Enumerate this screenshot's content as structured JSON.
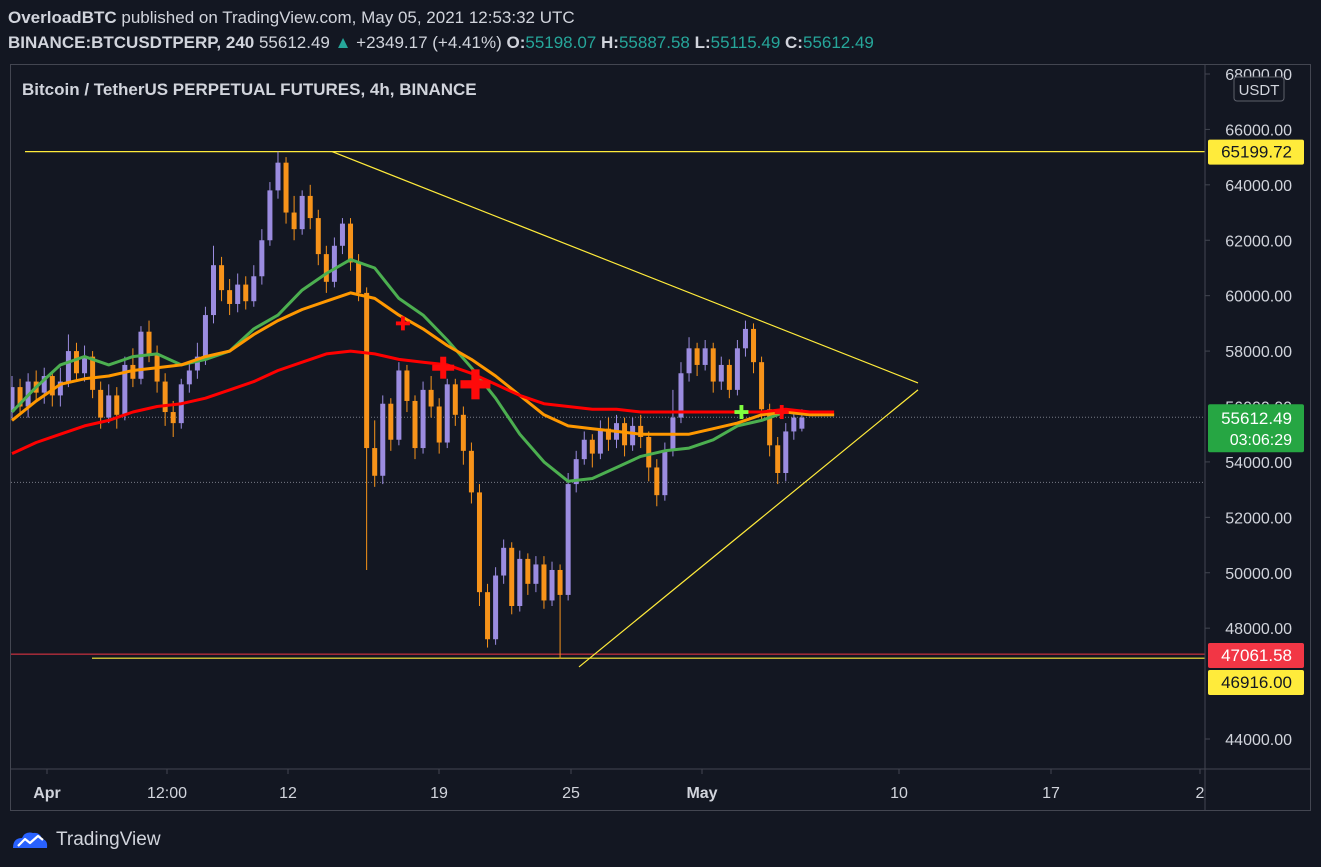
{
  "header": {
    "author": "OverloadBTC",
    "published": "published on TradingView.com, May 05, 2021 12:53:32 UTC",
    "symbol": "BINANCE:BTCUSDTPERP, 240",
    "last": "55612.49",
    "change": "+2349.17 (+4.41%)",
    "o_label": "O:",
    "o": "55198.07",
    "h_label": "H:",
    "h": "55887.58",
    "l_label": "L:",
    "l": "55115.49",
    "c_label": "C:",
    "c": "55612.49"
  },
  "legend": "Bitcoin / TetherUS PERPETUAL FUTURES, 4h, BINANCE",
  "brand": "TradingView",
  "colors": {
    "background": "#131722",
    "grid_border": "#434651",
    "text": "#d1d4dc",
    "candle_up": "#9b8ce0",
    "candle_down": "#f7931a",
    "ma_fast": "#4caf50",
    "ma_mid": "#ff9800",
    "ma_slow": "#ff0000",
    "trendline": "#ffeb3b",
    "support_line": "#f23645",
    "tag_yellow": "#ffeb3b",
    "tag_red": "#f23645",
    "tag_green": "#26a643",
    "tag_white": "#131722"
  },
  "chart_data": {
    "type": "candlestick",
    "currency": "USDT",
    "y_ticks": [
      "68000.00",
      "66000.00",
      "64000.00",
      "62000.00",
      "60000.00",
      "58000.00",
      "54000.00",
      "52000.00",
      "50000.00",
      "48000.00",
      "44000.00"
    ],
    "ylim": [
      42800,
      68300
    ],
    "x_ticks": [
      "Apr",
      "12:00",
      "12",
      "19",
      "25",
      "May",
      "10",
      "17",
      "2"
    ],
    "price_tags": [
      {
        "value": 65199.72,
        "text": "65199.72",
        "style": "yellow"
      },
      {
        "value": 55612.49,
        "text": "55612.49",
        "sub": "03:06:29",
        "style": "green"
      },
      {
        "value": 47061.58,
        "text": "47061.58",
        "style": "red"
      },
      {
        "value": 46916.0,
        "text": "46916.00",
        "style": "yellow"
      }
    ],
    "horizontal_lines": [
      {
        "y": 65199.72,
        "style": "yellow",
        "x_from": "Apr"
      },
      {
        "y": 46916.0,
        "style": "yellow",
        "x_from": "Apr 6"
      },
      {
        "y": 47061.58,
        "style": "red",
        "x_from": "Apr"
      }
    ],
    "trendlines": [
      {
        "from": {
          "x": "Apr 14",
          "y": 65200
        },
        "to": {
          "x": "May 11",
          "y": 56850
        }
      },
      {
        "from": {
          "x": "Apr 25",
          "y": 46600
        },
        "to": {
          "x": "May 11",
          "y": 56600
        }
      }
    ],
    "series": [
      {
        "name": "",
        "kind": "ma",
        "style": "fast",
        "values": [
          [
            0,
            55800
          ],
          [
            3,
            56700
          ],
          [
            6,
            57500
          ],
          [
            9,
            57800
          ],
          [
            12,
            57500
          ],
          [
            15,
            57800
          ],
          [
            18,
            57900
          ],
          [
            21,
            57500
          ],
          [
            24,
            57700
          ],
          [
            27,
            58000
          ],
          [
            30,
            58800
          ],
          [
            33,
            59300
          ],
          [
            36,
            60200
          ],
          [
            39,
            60800
          ],
          [
            42,
            61300
          ],
          [
            45,
            61000
          ],
          [
            48,
            59900
          ],
          [
            51,
            59300
          ],
          [
            54,
            58400
          ],
          [
            57,
            57400
          ],
          [
            60,
            56300
          ],
          [
            63,
            55000
          ],
          [
            66,
            54000
          ],
          [
            69,
            53300
          ],
          [
            72,
            53400
          ],
          [
            75,
            53800
          ],
          [
            78,
            54200
          ],
          [
            81,
            54400
          ],
          [
            84,
            54500
          ],
          [
            87,
            54800
          ],
          [
            90,
            55300
          ],
          [
            93,
            55500
          ],
          [
            96,
            55800
          ],
          [
            99,
            55700
          ],
          [
            102,
            55700
          ]
        ]
      },
      {
        "name": "",
        "kind": "ma",
        "style": "mid",
        "values": [
          [
            0,
            55500
          ],
          [
            3,
            56200
          ],
          [
            6,
            56800
          ],
          [
            9,
            57000
          ],
          [
            12,
            57100
          ],
          [
            15,
            57300
          ],
          [
            18,
            57400
          ],
          [
            21,
            57500
          ],
          [
            24,
            57800
          ],
          [
            27,
            58000
          ],
          [
            30,
            58600
          ],
          [
            33,
            59100
          ],
          [
            36,
            59500
          ],
          [
            39,
            59800
          ],
          [
            42,
            60100
          ],
          [
            45,
            59900
          ],
          [
            48,
            59300
          ],
          [
            51,
            58800
          ],
          [
            54,
            58200
          ],
          [
            57,
            57700
          ],
          [
            60,
            57100
          ],
          [
            63,
            56400
          ],
          [
            66,
            55700
          ],
          [
            69,
            55300
          ],
          [
            72,
            55200
          ],
          [
            75,
            55100
          ],
          [
            78,
            55000
          ],
          [
            81,
            55000
          ],
          [
            84,
            55000
          ],
          [
            87,
            55200
          ],
          [
            90,
            55400
          ],
          [
            93,
            55700
          ],
          [
            96,
            55800
          ],
          [
            99,
            55700
          ],
          [
            102,
            55700
          ]
        ]
      },
      {
        "name": "",
        "kind": "ma",
        "style": "slow",
        "values": [
          [
            0,
            54300
          ],
          [
            3,
            54700
          ],
          [
            6,
            55000
          ],
          [
            9,
            55300
          ],
          [
            12,
            55500
          ],
          [
            15,
            55800
          ],
          [
            18,
            56000
          ],
          [
            21,
            56100
          ],
          [
            24,
            56300
          ],
          [
            27,
            56600
          ],
          [
            30,
            56900
          ],
          [
            33,
            57300
          ],
          [
            36,
            57600
          ],
          [
            39,
            57900
          ],
          [
            42,
            58000
          ],
          [
            45,
            57900
          ],
          [
            48,
            57700
          ],
          [
            51,
            57600
          ],
          [
            54,
            57500
          ],
          [
            57,
            57200
          ],
          [
            60,
            56800
          ],
          [
            63,
            56400
          ],
          [
            66,
            56100
          ],
          [
            69,
            56000
          ],
          [
            72,
            55900
          ],
          [
            75,
            55900
          ],
          [
            78,
            55800
          ],
          [
            81,
            55800
          ],
          [
            84,
            55800
          ],
          [
            87,
            55800
          ],
          [
            90,
            55800
          ],
          [
            93,
            55800
          ],
          [
            96,
            55900
          ],
          [
            99,
            55800
          ],
          [
            102,
            55800
          ]
        ]
      }
    ],
    "markers": [
      {
        "x": 48.5,
        "y": 59000,
        "color": "red",
        "size": "small"
      },
      {
        "x": 53.5,
        "y": 57400,
        "color": "red",
        "size": "medium"
      },
      {
        "x": 57.5,
        "y": 56800,
        "color": "red",
        "size": "large"
      },
      {
        "x": 90.5,
        "y": 55800,
        "color": "green",
        "size": "small"
      },
      {
        "x": 95.5,
        "y": 55800,
        "color": "red",
        "size": "small"
      }
    ],
    "candles": [
      [
        0,
        55800,
        56700,
        55500,
        57100
      ],
      [
        1,
        56700,
        56000,
        55700,
        57000
      ],
      [
        2,
        56000,
        56900,
        55600,
        57200
      ],
      [
        3,
        56900,
        56500,
        56200,
        57300
      ],
      [
        4,
        56500,
        57100,
        56100,
        57400
      ],
      [
        5,
        57100,
        56400,
        56000,
        57200
      ],
      [
        6,
        56400,
        56900,
        56000,
        57400
      ],
      [
        7,
        56900,
        58000,
        56700,
        58600
      ],
      [
        8,
        58000,
        57200,
        56900,
        58300
      ],
      [
        9,
        57200,
        57800,
        56900,
        58200
      ],
      [
        10,
        57800,
        56600,
        56300,
        58000
      ],
      [
        11,
        56600,
        55600,
        55200,
        56900
      ],
      [
        12,
        55600,
        56400,
        55400,
        56800
      ],
      [
        13,
        56400,
        55700,
        55200,
        56700
      ],
      [
        14,
        55700,
        57500,
        55500,
        57800
      ],
      [
        15,
        57500,
        57000,
        56700,
        58100
      ],
      [
        16,
        57000,
        58700,
        56800,
        58900
      ],
      [
        17,
        58700,
        57900,
        57600,
        59100
      ],
      [
        18,
        57900,
        56900,
        56500,
        58200
      ],
      [
        19,
        56900,
        55800,
        55300,
        57200
      ],
      [
        20,
        55800,
        55400,
        54900,
        56200
      ],
      [
        21,
        55400,
        56800,
        55200,
        57000
      ],
      [
        22,
        56800,
        57300,
        56500,
        57600
      ],
      [
        23,
        57300,
        57800,
        57000,
        58300
      ],
      [
        24,
        57800,
        59300,
        57500,
        59600
      ],
      [
        25,
        59300,
        61100,
        59000,
        61800
      ],
      [
        26,
        61100,
        60200,
        59800,
        61400
      ],
      [
        27,
        60200,
        59700,
        59300,
        60600
      ],
      [
        28,
        59700,
        60400,
        59400,
        60800
      ],
      [
        29,
        60400,
        59800,
        59500,
        60700
      ],
      [
        30,
        59800,
        60700,
        59600,
        61100
      ],
      [
        31,
        60700,
        62000,
        60400,
        62400
      ],
      [
        32,
        62000,
        63800,
        61800,
        64100
      ],
      [
        33,
        63800,
        64800,
        63500,
        65200
      ],
      [
        34,
        64800,
        63000,
        62600,
        65000
      ],
      [
        35,
        63000,
        62400,
        62000,
        63600
      ],
      [
        36,
        62400,
        63600,
        62200,
        63800
      ],
      [
        37,
        63600,
        62800,
        62400,
        64000
      ],
      [
        38,
        62800,
        61500,
        61100,
        63100
      ],
      [
        39,
        61500,
        60500,
        60100,
        61800
      ],
      [
        40,
        60500,
        61800,
        60300,
        62100
      ],
      [
        41,
        61800,
        62600,
        61500,
        62800
      ],
      [
        42,
        62600,
        61200,
        60900,
        62800
      ],
      [
        43,
        61200,
        60100,
        59800,
        61500
      ],
      [
        44,
        60100,
        54500,
        50100,
        60300
      ],
      [
        45,
        54500,
        53500,
        53100,
        55500
      ],
      [
        46,
        53500,
        56100,
        53200,
        56400
      ],
      [
        47,
        56100,
        54800,
        54400,
        56300
      ],
      [
        48,
        54800,
        57300,
        54600,
        57600
      ],
      [
        49,
        57300,
        56200,
        55800,
        57500
      ],
      [
        50,
        56200,
        54500,
        54100,
        56400
      ],
      [
        51,
        54500,
        56600,
        54300,
        56900
      ],
      [
        52,
        56600,
        56000,
        55600,
        57100
      ],
      [
        53,
        56000,
        54700,
        54300,
        56300
      ],
      [
        54,
        54700,
        56800,
        54500,
        57000
      ],
      [
        55,
        56800,
        55700,
        55300,
        57000
      ],
      [
        56,
        55700,
        54400,
        53900,
        56000
      ],
      [
        57,
        54400,
        52900,
        52500,
        54700
      ],
      [
        58,
        52900,
        49300,
        48800,
        53200
      ],
      [
        59,
        49300,
        47600,
        47300,
        49600
      ],
      [
        60,
        47600,
        49900,
        47400,
        50200
      ],
      [
        61,
        49900,
        50900,
        49600,
        51200
      ],
      [
        62,
        50900,
        48800,
        48500,
        51100
      ],
      [
        63,
        48800,
        50500,
        48600,
        50800
      ],
      [
        64,
        50500,
        49600,
        49200,
        50700
      ],
      [
        65,
        49600,
        50300,
        49300,
        50600
      ],
      [
        66,
        50300,
        49000,
        48700,
        50600
      ],
      [
        67,
        49000,
        50100,
        48800,
        50400
      ],
      [
        68,
        50100,
        49200,
        46900,
        50300
      ],
      [
        69,
        49200,
        53200,
        49000,
        53600
      ],
      [
        70,
        53200,
        54100,
        52900,
        54400
      ],
      [
        71,
        54100,
        54800,
        53900,
        55100
      ],
      [
        72,
        54800,
        54300,
        53800,
        55000
      ],
      [
        73,
        54300,
        55200,
        54100,
        55500
      ],
      [
        74,
        55200,
        54800,
        54400,
        55600
      ],
      [
        75,
        54800,
        55400,
        54500,
        55700
      ],
      [
        76,
        55400,
        54600,
        54200,
        55600
      ],
      [
        77,
        54600,
        55300,
        54400,
        55600
      ],
      [
        78,
        55300,
        54900,
        54500,
        55700
      ],
      [
        79,
        54900,
        53800,
        53300,
        55100
      ],
      [
        80,
        53800,
        52800,
        52400,
        54100
      ],
      [
        81,
        52800,
        54400,
        52600,
        54700
      ],
      [
        82,
        54400,
        55600,
        54200,
        56600
      ],
      [
        83,
        55600,
        57200,
        55400,
        57600
      ],
      [
        84,
        57200,
        58100,
        56900,
        58500
      ],
      [
        85,
        58100,
        57500,
        57100,
        58300
      ],
      [
        86,
        57500,
        58100,
        57300,
        58400
      ],
      [
        87,
        58100,
        56900,
        56500,
        58300
      ],
      [
        88,
        56900,
        57500,
        56600,
        57800
      ],
      [
        89,
        57500,
        56600,
        56300,
        57700
      ],
      [
        90,
        56600,
        58100,
        56400,
        58400
      ],
      [
        91,
        58100,
        58800,
        57800,
        59100
      ],
      [
        92,
        58800,
        57600,
        57200,
        59000
      ],
      [
        93,
        57600,
        55900,
        55500,
        57800
      ],
      [
        94,
        55900,
        54600,
        54200,
        56100
      ],
      [
        95,
        54600,
        53600,
        53200,
        54900
      ],
      [
        96,
        53600,
        55100,
        53300,
        55400
      ],
      [
        97,
        55100,
        55600,
        54800,
        55900
      ],
      [
        98,
        55200,
        55600,
        55100,
        55900
      ]
    ]
  }
}
